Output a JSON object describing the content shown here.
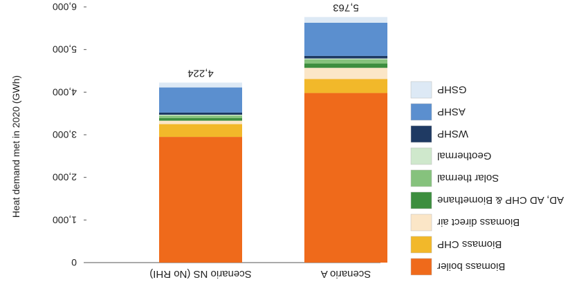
{
  "chart_data": {
    "type": "bar",
    "stacked": true,
    "orientation": "vertical",
    "ylabel": "Heat demand met in 2020 (GWh)",
    "ylim": [
      0,
      6000
    ],
    "yticks": [
      "0",
      "1,000",
      "2,000",
      "3,000",
      "4,000",
      "5,000",
      "6,000"
    ],
    "categories": [
      "Scenario NS (No RHI)",
      "Scenario A"
    ],
    "totals": [
      "4,224",
      "5,763"
    ],
    "legend_position": "right",
    "series": [
      {
        "name": "Biomass boiler",
        "color": "#ef6a1b",
        "values": [
          2950,
          3980
        ]
      },
      {
        "name": "Biomass CHP",
        "color": "#f2b82a",
        "values": [
          300,
          330
        ]
      },
      {
        "name": "Biomass direct air",
        "color": "#fbe6c7",
        "values": [
          80,
          260
        ]
      },
      {
        "name": "AD, AD CHP & Biomethane",
        "color": "#3d8e3f",
        "values": [
          60,
          100
        ]
      },
      {
        "name": "Solar thermal",
        "color": "#86c27d",
        "values": [
          60,
          100
        ]
      },
      {
        "name": "Geothermal",
        "color": "#cfe8cc",
        "values": [
          20,
          20
        ]
      },
      {
        "name": "WSHP",
        "color": "#1f3a63",
        "values": [
          50,
          60
        ]
      },
      {
        "name": "ASHP",
        "color": "#5b8fcf",
        "values": [
          590,
          780
        ]
      },
      {
        "name": "GSHP",
        "color": "#dde9f5",
        "values": [
          114,
          133
        ]
      }
    ]
  }
}
